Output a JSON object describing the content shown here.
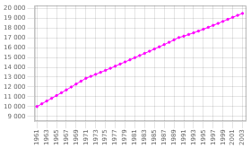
{
  "chart_data": {
    "type": "line",
    "x": [
      1961,
      1962,
      1963,
      1964,
      1965,
      1966,
      1967,
      1968,
      1969,
      1970,
      1971,
      1972,
      1973,
      1974,
      1975,
      1976,
      1977,
      1978,
      1979,
      1980,
      1981,
      1982,
      1983,
      1984,
      1985,
      1986,
      1987,
      1988,
      1989,
      1990,
      1991,
      1992,
      1993,
      1994,
      1995,
      1996,
      1997,
      1998,
      1999,
      2000,
      2001,
      2002,
      2003
    ],
    "values": [
      10000,
      10280,
      10560,
      10840,
      11120,
      11410,
      11700,
      11995,
      12290,
      12585,
      12880,
      13080,
      13285,
      13490,
      13695,
      13905,
      14120,
      14335,
      14550,
      14765,
      14985,
      15205,
      15425,
      15645,
      15870,
      16095,
      16320,
      16555,
      16795,
      17040,
      17180,
      17350,
      17520,
      17700,
      17885,
      18080,
      18280,
      18480,
      18685,
      18895,
      19100,
      19305,
      19500
    ],
    "color": "#ff00ff",
    "marker": "circle",
    "xlim": [
      1960.5,
      2003.8
    ],
    "xticks": [
      1961,
      1963,
      1965,
      1967,
      1969,
      1971,
      1973,
      1975,
      1977,
      1979,
      1981,
      1983,
      1985,
      1987,
      1989,
      1991,
      1993,
      1995,
      1997,
      1999,
      2001,
      2003
    ],
    "ylim": [
      8500,
      20300
    ],
    "yticks": [
      {
        "value": 9000,
        "label": "9 000"
      },
      {
        "value": 10000,
        "label": "10 000"
      },
      {
        "value": 11000,
        "label": "11 000"
      },
      {
        "value": 12000,
        "label": "12 000"
      },
      {
        "value": 13000,
        "label": "13 000"
      },
      {
        "value": 14000,
        "label": "14 000"
      },
      {
        "value": 15000,
        "label": "15 000"
      },
      {
        "value": 16000,
        "label": "16 000"
      },
      {
        "value": 17000,
        "label": "17 000"
      },
      {
        "value": 18000,
        "label": "18 000"
      },
      {
        "value": 19000,
        "label": "19 000"
      },
      {
        "value": 20000,
        "label": "20 000"
      }
    ],
    "grid": true
  }
}
